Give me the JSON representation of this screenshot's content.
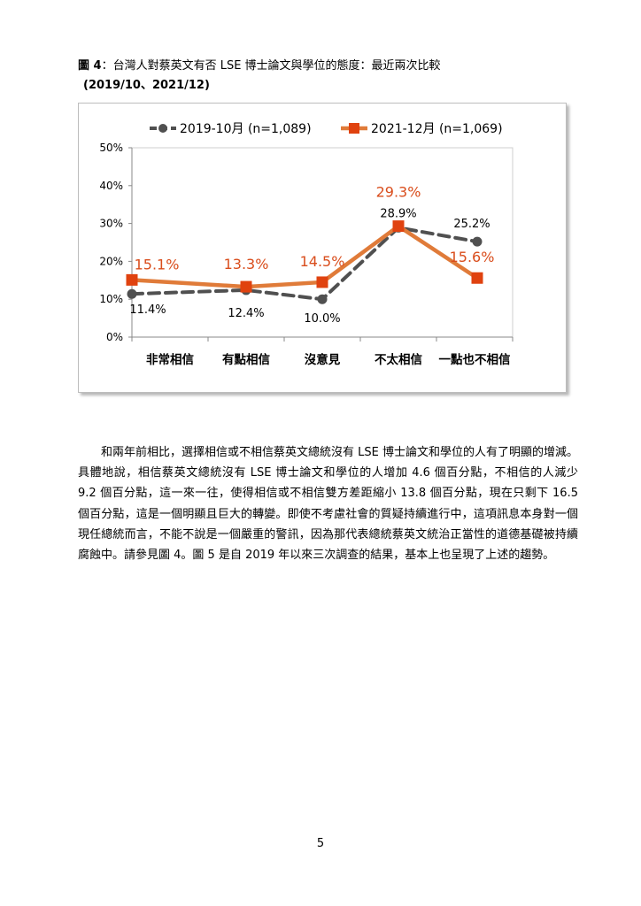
{
  "figure": {
    "label": "圖 4",
    "title": "：台灣人對蔡英文有否 LSE 博士論文與學位的態度：最近兩次比較",
    "subtitle": "(2019/10、2021/12)"
  },
  "chart_data": {
    "type": "line",
    "categories": [
      "非常相信",
      "有點相信",
      "沒意見",
      "不太相信",
      "一點也不相信"
    ],
    "ylim": [
      0,
      50
    ],
    "yticks": [
      "0%",
      "10%",
      "20%",
      "30%",
      "40%",
      "50%"
    ],
    "legend_position": "top",
    "grid": false,
    "series": [
      {
        "name": "2019-10月 (n=1,089)",
        "values": [
          11.4,
          12.4,
          10.0,
          28.9,
          25.2
        ],
        "labels": [
          "11.4%",
          "12.4%",
          "10.0%",
          "28.9%",
          "25.2%"
        ],
        "color": "#505050",
        "style": "dashed",
        "marker": "circle"
      },
      {
        "name": "2021-12月 (n=1,069)",
        "values": [
          15.1,
          13.3,
          14.5,
          29.3,
          15.6
        ],
        "labels": [
          "15.1%",
          "13.3%",
          "14.5%",
          "29.3%",
          "15.6%"
        ],
        "color": "#e07b39",
        "marker_color": "#e0420f",
        "label_color": "#d94d1c",
        "style": "solid",
        "marker": "square"
      }
    ]
  },
  "body_paragraph": "和兩年前相比，選擇相信或不相信蔡英文總統沒有 LSE 博士論文和學位的人有了明顯的增減。具體地說，相信蔡英文總統沒有 LSE 博士論文和學位的人增加 4.6 個百分點，不相信的人減少 9.2 個百分點，這一來一往，使得相信或不相信雙方差距縮小 13.8 個百分點，現在只剩下 16.5 個百分點，這是一個明顯且巨大的轉變。即使不考慮社會的質疑持續進行中，這項訊息本身對一個現任總統而言，不能不說是一個嚴重的警訊，因為那代表總統蔡英文統治正當性的道德基礎被持續腐蝕中。請參見圖 4。圖 5 是自 2019 年以來三次調查的結果，基本上也呈現了上述的趨勢。",
  "page_number": "5"
}
